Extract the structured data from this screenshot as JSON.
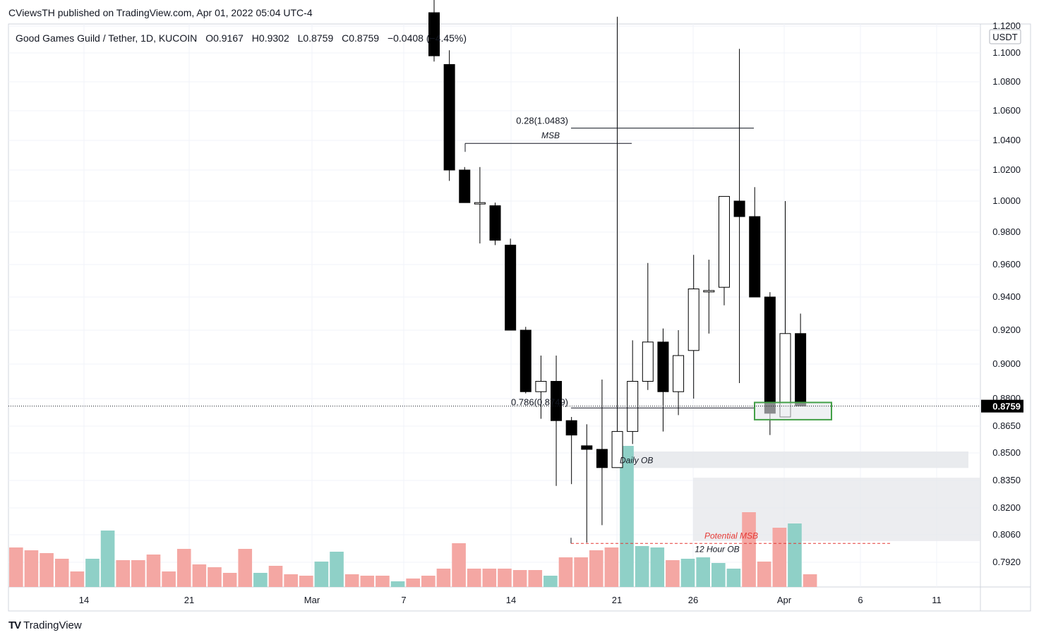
{
  "publisher_line": "CViewsTH published on TradingView.com, Apr 01, 2022 05:04 UTC-4",
  "legend": {
    "symbol": "Good Games Guild / Tether, 1D, KUCOIN",
    "open": "O0.9167",
    "high": "H0.9302",
    "low": "L0.8759",
    "close": "C0.8759",
    "change": "−0.0408 (−4.45%)"
  },
  "currency_label": "USDT",
  "last_price_label": "0.8759",
  "footer_brand": "TradingView",
  "colors": {
    "volume_up": "#8fd0c7",
    "volume_down": "#f4a7a3",
    "candle_down": "#000000",
    "candle_up": "#ffffff",
    "zone_fill": "#e5e7eb",
    "green_box": "#43a047",
    "potential_msb": "#e53935"
  },
  "chart_data": {
    "type": "candlestick",
    "price_axis_ticks": [
      "1.1200",
      "1.1000",
      "1.0800",
      "1.0600",
      "1.0400",
      "1.0200",
      "1.0000",
      "0.9800",
      "0.9600",
      "0.9400",
      "0.9200",
      "0.9000",
      "0.8800",
      "0.8650",
      "0.8500",
      "0.8350",
      "0.8200",
      "0.8060",
      "0.7920"
    ],
    "date_axis_ticks": [
      "14",
      "21",
      "Mar",
      "7",
      "14",
      "21",
      "26",
      "Apr",
      "6",
      "11"
    ],
    "candles": [
      {
        "o": 1.13,
        "h": 1.15,
        "l": 1.094,
        "c": 1.098
      },
      {
        "o": 1.092,
        "h": 1.102,
        "l": 1.013,
        "c": 1.02
      },
      {
        "o": 1.02,
        "h": 1.022,
        "l": 0.999,
        "c": 0.999
      },
      {
        "o": 0.999,
        "h": 1.022,
        "l": 0.973,
        "c": 0.999
      },
      {
        "o": 0.997,
        "h": 0.999,
        "l": 0.972,
        "c": 0.975
      },
      {
        "o": 0.972,
        "h": 0.976,
        "l": 0.92,
        "c": 0.92
      },
      {
        "o": 0.92,
        "h": 0.922,
        "l": 0.883,
        "c": 0.884
      },
      {
        "o": 0.884,
        "h": 0.905,
        "l": 0.869,
        "c": 0.89
      },
      {
        "o": 0.89,
        "h": 0.905,
        "l": 0.832,
        "c": 0.868
      },
      {
        "o": 0.868,
        "h": 0.87,
        "l": 0.833,
        "c": 0.86
      },
      {
        "o": 0.854,
        "h": 0.866,
        "l": 0.802,
        "c": 0.852
      },
      {
        "o": 0.852,
        "h": 0.891,
        "l": 0.811,
        "c": 0.842
      },
      {
        "o": 0.842,
        "h": 1.127,
        "l": 0.842,
        "c": 0.862
      },
      {
        "o": 0.862,
        "h": 0.914,
        "l": 0.855,
        "c": 0.89
      },
      {
        "o": 0.89,
        "h": 0.961,
        "l": 0.885,
        "c": 0.913
      },
      {
        "o": 0.913,
        "h": 0.921,
        "l": 0.862,
        "c": 0.884
      },
      {
        "o": 0.884,
        "h": 0.92,
        "l": 0.871,
        "c": 0.905
      },
      {
        "o": 0.908,
        "h": 0.966,
        "l": 0.88,
        "c": 0.945
      },
      {
        "o": 0.944,
        "h": 0.963,
        "l": 0.918,
        "c": 0.944
      },
      {
        "o": 0.946,
        "h": 1.003,
        "l": 0.935,
        "c": 1.003
      },
      {
        "o": 1.0,
        "h": 1.103,
        "l": 0.889,
        "c": 0.99
      },
      {
        "o": 0.99,
        "h": 1.009,
        "l": 0.94,
        "c": 0.94
      },
      {
        "o": 0.94,
        "h": 0.943,
        "l": 0.86,
        "c": 0.872
      },
      {
        "o": 0.87,
        "h": 1.0,
        "l": 0.87,
        "c": 0.918
      },
      {
        "o": 0.918,
        "h": 0.93,
        "l": 0.876,
        "c": 0.876
      }
    ],
    "volume": [
      {
        "v": 0.28,
        "d": "down"
      },
      {
        "v": 0.26,
        "d": "down"
      },
      {
        "v": 0.24,
        "d": "down"
      },
      {
        "v": 0.2,
        "d": "down"
      },
      {
        "v": 0.11,
        "d": "down"
      },
      {
        "v": 0.2,
        "d": "up"
      },
      {
        "v": 0.4,
        "d": "up"
      },
      {
        "v": 0.19,
        "d": "down"
      },
      {
        "v": 0.19,
        "d": "down"
      },
      {
        "v": 0.23,
        "d": "down"
      },
      {
        "v": 0.11,
        "d": "down"
      },
      {
        "v": 0.27,
        "d": "down"
      },
      {
        "v": 0.16,
        "d": "down"
      },
      {
        "v": 0.14,
        "d": "down"
      },
      {
        "v": 0.1,
        "d": "down"
      },
      {
        "v": 0.27,
        "d": "down"
      },
      {
        "v": 0.1,
        "d": "up"
      },
      {
        "v": 0.15,
        "d": "down"
      },
      {
        "v": 0.09,
        "d": "down"
      },
      {
        "v": 0.08,
        "d": "down"
      },
      {
        "v": 0.18,
        "d": "up"
      },
      {
        "v": 0.25,
        "d": "up"
      },
      {
        "v": 0.09,
        "d": "down"
      },
      {
        "v": 0.08,
        "d": "down"
      },
      {
        "v": 0.08,
        "d": "down"
      },
      {
        "v": 0.04,
        "d": "up"
      },
      {
        "v": 0.06,
        "d": "down"
      },
      {
        "v": 0.08,
        "d": "down"
      },
      {
        "v": 0.13,
        "d": "down"
      },
      {
        "v": 0.31,
        "d": "down"
      },
      {
        "v": 0.13,
        "d": "down"
      },
      {
        "v": 0.13,
        "d": "down"
      },
      {
        "v": 0.13,
        "d": "down"
      },
      {
        "v": 0.12,
        "d": "down"
      },
      {
        "v": 0.12,
        "d": "down"
      },
      {
        "v": 0.08,
        "d": "up"
      },
      {
        "v": 0.21,
        "d": "down"
      },
      {
        "v": 0.21,
        "d": "down"
      },
      {
        "v": 0.26,
        "d": "down"
      },
      {
        "v": 0.28,
        "d": "down"
      },
      {
        "v": 1.0,
        "d": "up"
      },
      {
        "v": 0.29,
        "d": "up"
      },
      {
        "v": 0.28,
        "d": "up"
      },
      {
        "v": 0.19,
        "d": "down"
      },
      {
        "v": 0.2,
        "d": "up"
      },
      {
        "v": 0.21,
        "d": "up"
      },
      {
        "v": 0.17,
        "d": "up"
      },
      {
        "v": 0.13,
        "d": "up"
      },
      {
        "v": 0.53,
        "d": "down"
      },
      {
        "v": 0.18,
        "d": "down"
      },
      {
        "v": 0.42,
        "d": "down"
      },
      {
        "v": 0.45,
        "d": "up"
      },
      {
        "v": 0.09,
        "d": "down"
      }
    ],
    "annotations": {
      "fib_028": {
        "label": "0.28(1.0483)",
        "price": 1.0483
      },
      "msb": {
        "label": "MSB",
        "price": 1.038
      },
      "fib_0786": {
        "label": "0.786(0.8749)",
        "price": 0.8749
      },
      "daily_ob": {
        "label": "Daily OB",
        "price_top": 0.8508,
        "price_bottom": 0.8418
      },
      "hour12_ob": {
        "label": "12 Hour OB",
        "price_top": 0.8365,
        "price_bottom": 0.8028
      },
      "potential_msb": {
        "label": "Potential MSB",
        "price": 0.8016
      },
      "green_zone": {
        "price_top": 0.8779,
        "price_bottom": 0.8685
      }
    },
    "last_price": 0.8759
  }
}
